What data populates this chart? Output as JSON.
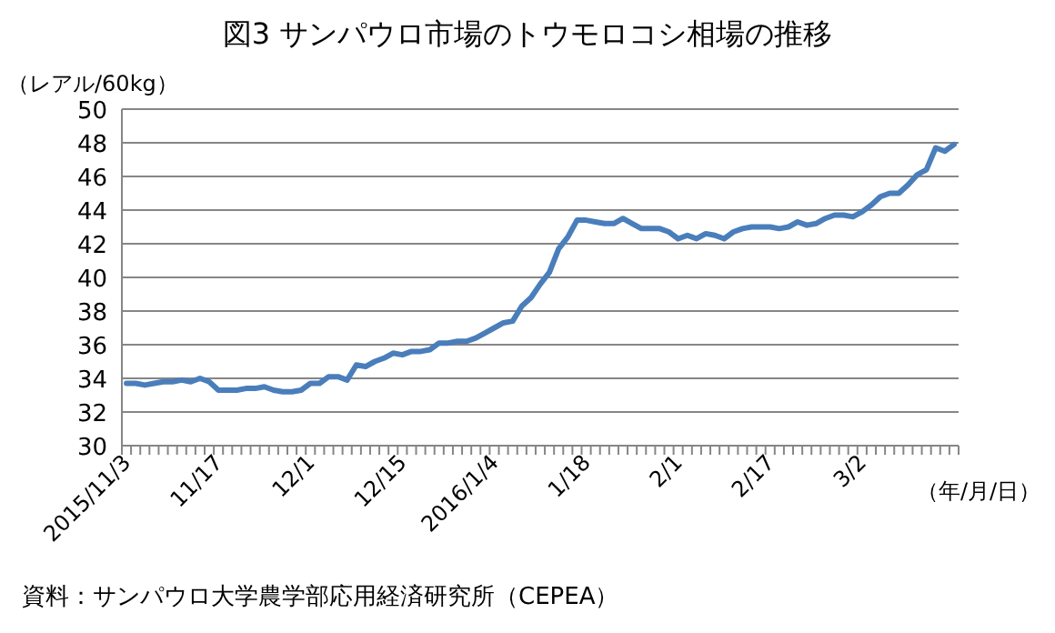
{
  "chart_data": {
    "type": "line",
    "title": "図3  サンパウロ市場のトウモロコシ相場の推移",
    "ylabel": "（レアル/60kg）",
    "xlabel": "（年/月/日）",
    "annotations": [
      "資料：サンパウロ大学農学部応用経済研究所（CEPEA）"
    ],
    "categories": [
      "2015/11/3",
      null,
      null,
      null,
      null,
      null,
      null,
      null,
      null,
      null,
      "11/17",
      null,
      null,
      null,
      null,
      null,
      null,
      null,
      null,
      null,
      "12/1",
      null,
      null,
      null,
      null,
      null,
      null,
      null,
      null,
      null,
      "12/15",
      null,
      null,
      null,
      null,
      null,
      null,
      null,
      null,
      null,
      "2016/1/4",
      null,
      null,
      null,
      null,
      null,
      null,
      null,
      null,
      null,
      "1/18",
      null,
      null,
      null,
      null,
      null,
      null,
      null,
      null,
      null,
      "2/1",
      null,
      null,
      null,
      null,
      null,
      null,
      null,
      null,
      null,
      "2/17",
      null,
      null,
      null,
      null,
      null,
      null,
      null,
      null,
      null,
      "3/2",
      null,
      null,
      null,
      null,
      null,
      null,
      null,
      null,
      null,
      null
    ],
    "values": [
      33.7,
      33.7,
      33.6,
      33.7,
      33.8,
      33.8,
      33.9,
      33.8,
      34.0,
      33.8,
      33.3,
      33.3,
      33.3,
      33.4,
      33.4,
      33.5,
      33.3,
      33.2,
      33.2,
      33.3,
      33.7,
      33.7,
      34.1,
      34.1,
      33.9,
      34.8,
      34.7,
      35.0,
      35.2,
      35.5,
      35.4,
      35.6,
      35.6,
      35.7,
      36.1,
      36.1,
      36.2,
      36.2,
      36.4,
      36.7,
      37.0,
      37.3,
      37.4,
      38.3,
      38.8,
      39.6,
      40.3,
      41.7,
      42.4,
      43.4,
      43.4,
      43.3,
      43.2,
      43.2,
      43.5,
      43.2,
      42.9,
      42.9,
      42.9,
      42.7,
      42.3,
      42.5,
      42.3,
      42.6,
      42.5,
      42.3,
      42.7,
      42.9,
      43.0,
      43.0,
      43.0,
      42.9,
      43.0,
      43.3,
      43.1,
      43.2,
      43.5,
      43.7,
      43.7,
      43.6,
      43.9,
      44.3,
      44.8,
      45.0,
      45.0,
      45.5,
      46.1,
      46.4,
      47.7,
      47.5,
      47.9
    ],
    "color": "#4a7ebb",
    "ylim": [
      30,
      50
    ],
    "yticks": [
      30,
      32,
      34,
      36,
      38,
      40,
      42,
      44,
      46,
      48,
      50
    ],
    "grid": "y",
    "marker": "none",
    "line_style": "solid"
  }
}
